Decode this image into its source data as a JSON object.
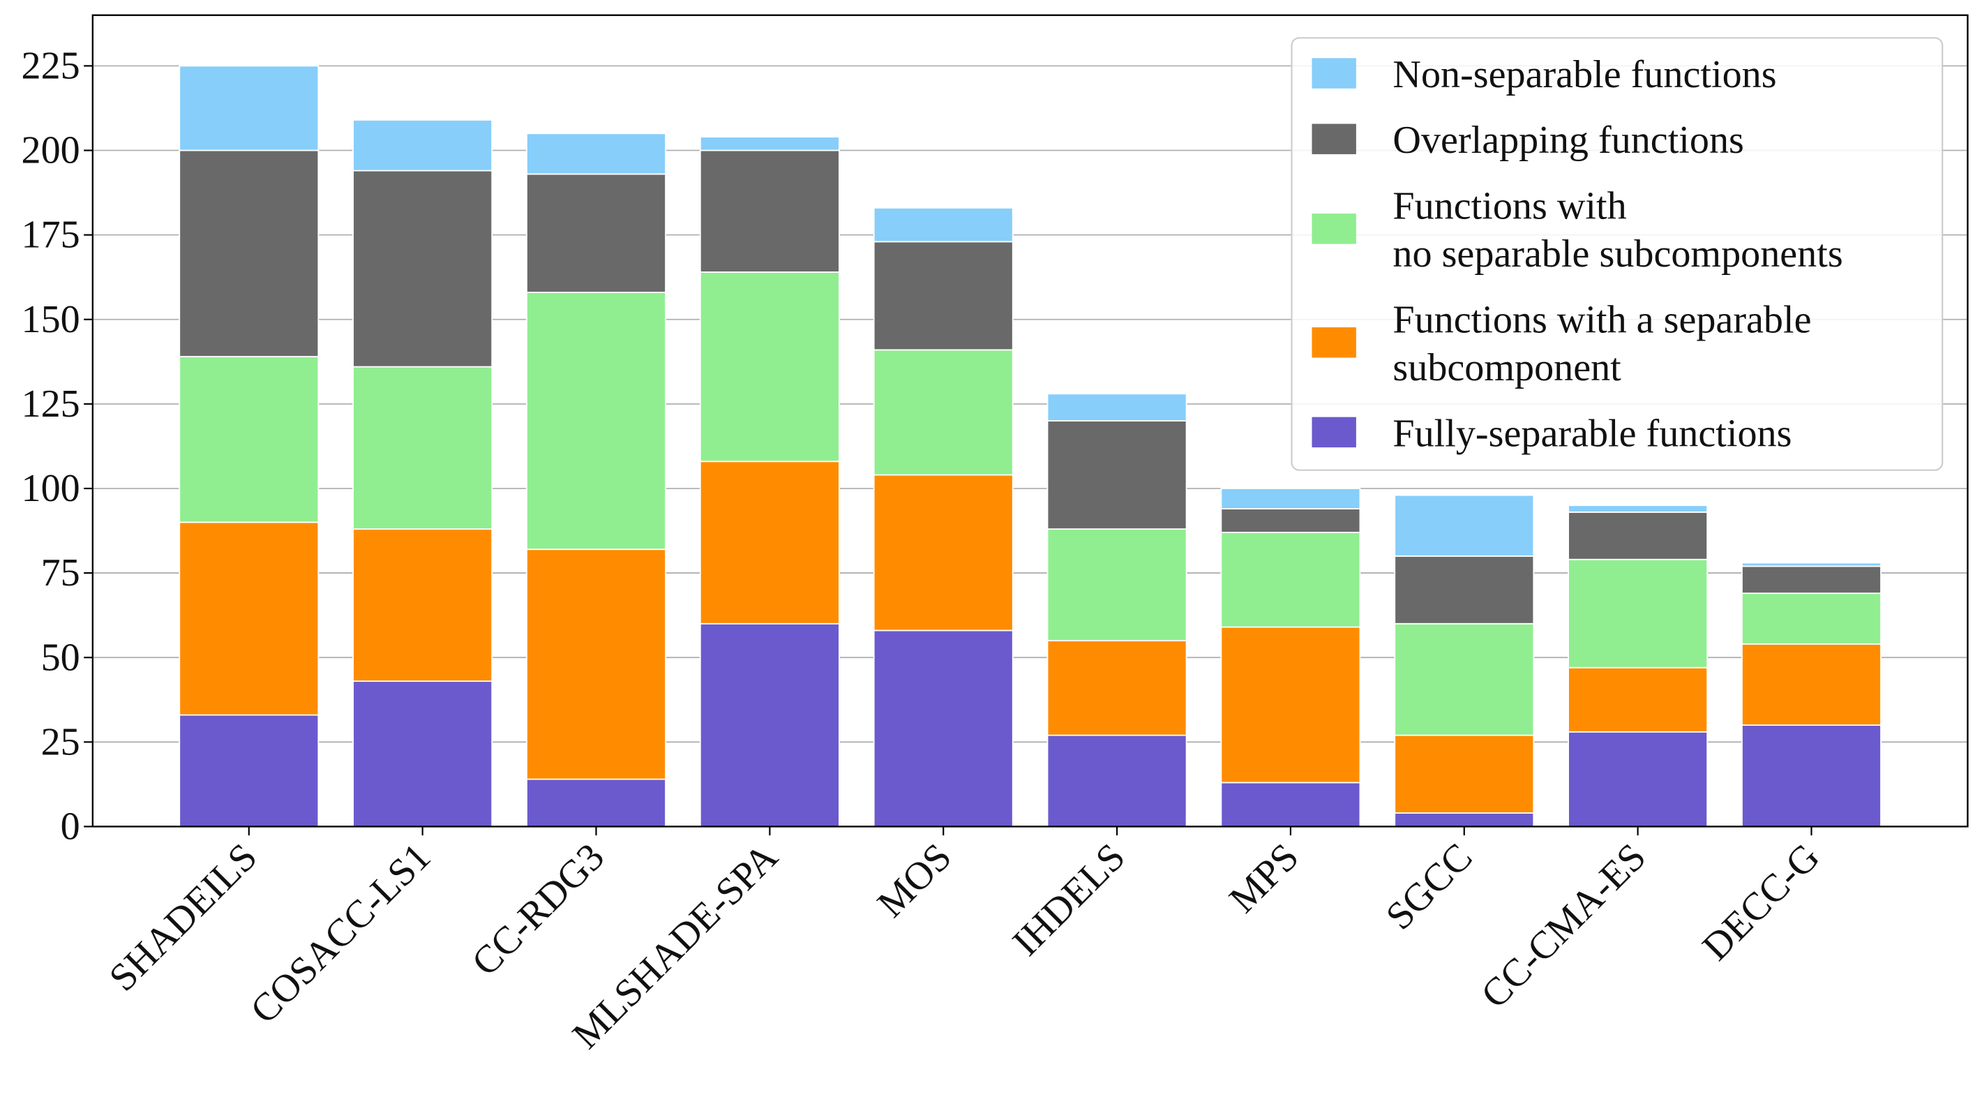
{
  "chart_data": {
    "type": "stacked_bar",
    "categories": [
      "SHADEILS",
      "COSACC-LS1",
      "CC-RDG3",
      "MLSHADE-SPA",
      "MOS",
      "IHDELS",
      "MPS",
      "SGCC",
      "CC-CMA-ES",
      "DECC-G"
    ],
    "series": [
      {
        "name": "Fully-separable functions",
        "color": "#6a5acd",
        "values": [
          33,
          43,
          14,
          60,
          58,
          27,
          13,
          4,
          28,
          30
        ]
      },
      {
        "name": "Functions with a separable\nsubcomponent",
        "color": "#ff8c00",
        "values": [
          57,
          45,
          68,
          48,
          46,
          28,
          46,
          23,
          19,
          24
        ]
      },
      {
        "name": "Functions with\nno separable subcomponents",
        "color": "#90ee90",
        "values": [
          49,
          48,
          76,
          56,
          37,
          33,
          28,
          33,
          32,
          15
        ]
      },
      {
        "name": "Overlapping functions",
        "color": "#696969",
        "values": [
          61,
          58,
          35,
          36,
          32,
          32,
          7,
          20,
          14,
          8
        ]
      },
      {
        "name": "Non-separable functions",
        "color": "#87cefa",
        "values": [
          25,
          15,
          12,
          4,
          10,
          8,
          6,
          18,
          2,
          1
        ]
      }
    ],
    "ylim": [
      0,
      240
    ],
    "yticks": [
      0,
      25,
      50,
      75,
      100,
      125,
      150,
      175,
      200,
      225
    ],
    "grid": true,
    "legend": "upper right"
  }
}
